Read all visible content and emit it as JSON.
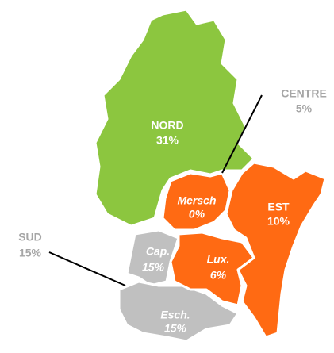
{
  "regions": [
    {
      "name": "NORD",
      "value": "31%",
      "color": "#8cc63f"
    },
    {
      "name": "CENTRE",
      "value": "5%",
      "color": "#a6a6a6"
    },
    {
      "name": "SUD",
      "value": "15%",
      "color": "#a6a6a6"
    },
    {
      "name": "Mersch",
      "value": "0%",
      "color": "#ff6a13"
    },
    {
      "name": "EST",
      "value": "10%",
      "color": "#ff6a13"
    },
    {
      "name": "Cap.",
      "value": "15%",
      "color": "#c0c0c0"
    },
    {
      "name": "Lux.",
      "value": "6%",
      "color": "#ff6a13"
    },
    {
      "name": "Esch.",
      "value": "15%",
      "color": "#c0c0c0"
    }
  ]
}
